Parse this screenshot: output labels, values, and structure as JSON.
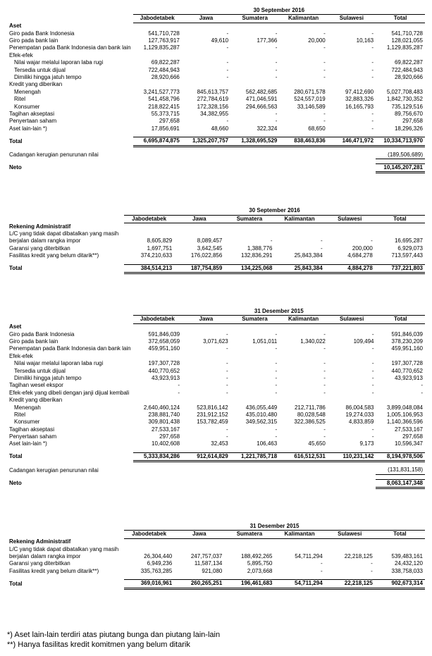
{
  "tables": [
    {
      "date": "30 September 2016",
      "columns": [
        "Jabodetabek",
        "Jawa",
        "Sumatera",
        "Kalimantan",
        "Sulawesi",
        "Total"
      ],
      "section_title": "Aset",
      "rows": [
        {
          "label": "Giro pada Bank Indonesia",
          "indent": 0,
          "vals": [
            "541,710,728",
            "-",
            "-",
            "-",
            "-",
            "541,710,728"
          ]
        },
        {
          "label": "Giro pada bank lain",
          "indent": 0,
          "vals": [
            "127,763,917",
            "49,610",
            "177,366",
            "20,000",
            "10,163",
            "128,021,055"
          ]
        },
        {
          "label": "Penempatan pada Bank Indonesia dan bank lain",
          "indent": 0,
          "vals": [
            "1,129,835,287",
            "-",
            "-",
            "-",
            "-",
            "1,129,835,287"
          ]
        },
        {
          "label": "Efek-efek",
          "indent": 0,
          "vals": [
            "",
            "",
            "",
            "",
            "",
            ""
          ]
        },
        {
          "label": "Nilai wajar melalui laporan laba rugi",
          "indent": 1,
          "vals": [
            "69,822,287",
            "-",
            "-",
            "-",
            "-",
            "69,822,287"
          ]
        },
        {
          "label": "Tersedia untuk dijual",
          "indent": 1,
          "vals": [
            "722,484,943",
            "-",
            "-",
            "-",
            "-",
            "722,484,943"
          ]
        },
        {
          "label": "Dimiliki hingga jatuh tempo",
          "indent": 1,
          "vals": [
            "28,920,666",
            "-",
            "-",
            "-",
            "-",
            "28,920,666"
          ]
        },
        {
          "label": "Kredit yang diberikan",
          "indent": 0,
          "vals": [
            "",
            "",
            "",
            "",
            "",
            ""
          ]
        },
        {
          "label": "Menengah",
          "indent": 1,
          "vals": [
            "3,241,527,773",
            "845,613,757",
            "562,482,685",
            "280,671,578",
            "97,412,690",
            "5,027,708,483"
          ]
        },
        {
          "label": "Ritel",
          "indent": 1,
          "vals": [
            "541,458,796",
            "272,784,619",
            "471,046,591",
            "524,557,019",
            "32,883,326",
            "1,842,730,352"
          ]
        },
        {
          "label": "Konsumer",
          "indent": 1,
          "vals": [
            "218,822,415",
            "172,328,156",
            "294,666,563",
            "33,146,589",
            "16,165,793",
            "735,129,516"
          ]
        },
        {
          "label": "Tagihan akseptasi",
          "indent": 0,
          "vals": [
            "55,373,715",
            "34,382,955",
            "-",
            "-",
            "-",
            "89,756,670"
          ]
        },
        {
          "label": "Penyertaan saham",
          "indent": 0,
          "vals": [
            "297,658",
            "-",
            "-",
            "-",
            "-",
            "297,658"
          ]
        },
        {
          "label": "Aset lain-lain *)",
          "indent": 0,
          "vals": [
            "17,856,691",
            "48,660",
            "322,324",
            "68,650",
            "-",
            "18,296,326"
          ]
        }
      ],
      "total_label": "Total",
      "totals": [
        "6,695,874,875",
        "1,325,207,757",
        "1,328,695,529",
        "838,463,836",
        "146,471,972",
        "10,334,713,970"
      ],
      "cadangan_label": "Cadangan kerugian penurunan nilai",
      "cadangan_val": "(189,506,689)",
      "neto_label": "Neto",
      "neto_val": "10,145,207,281"
    },
    {
      "date": "30 September 2016",
      "columns": [
        "Jabodetabek",
        "Jawa",
        "Sumatera",
        "Kalimantan",
        "Sulawesi",
        "Total"
      ],
      "section_title": "Rekening Administratif",
      "rows": [
        {
          "label": "L/C yang tidak dapat dibatalkan yang masih",
          "indent": 0,
          "vals": [
            "",
            "",
            "",
            "",
            "",
            ""
          ]
        },
        {
          "label": "berjalan dalam rangka impor",
          "indent": 0,
          "vals": [
            "8,605,829",
            "8,089,457",
            "-",
            "-",
            "-",
            "16,695,287"
          ]
        },
        {
          "label": "Garansi yang diterbitkan",
          "indent": 0,
          "vals": [
            "1,697,751",
            "3,642,545",
            "1,388,776",
            "-",
            "200,000",
            "6,929,073"
          ]
        },
        {
          "label": "Fasilitas kredit yang belum ditarik**)",
          "indent": 0,
          "vals": [
            "374,210,633",
            "176,022,856",
            "132,836,291",
            "25,843,384",
            "4,684,278",
            "713,597,443"
          ]
        }
      ],
      "total_label": "Total",
      "totals": [
        "384,514,213",
        "187,754,859",
        "134,225,068",
        "25,843,384",
        "4,884,278",
        "737,221,803"
      ]
    },
    {
      "date": "31 Desember 2015",
      "columns": [
        "Jabodetabek",
        "Jawa",
        "Sumatera",
        "Kalimantan",
        "Sulawesi",
        "Total"
      ],
      "section_title": "Aset",
      "rows": [
        {
          "label": "Giro pada Bank Indonesia",
          "indent": 0,
          "vals": [
            "591,846,039",
            "-",
            "-",
            "-",
            "-",
            "591,846,039"
          ]
        },
        {
          "label": "Giro pada bank lain",
          "indent": 0,
          "vals": [
            "372,658,059",
            "3,071,623",
            "1,051,011",
            "1,340,022",
            "109,494",
            "378,230,209"
          ]
        },
        {
          "label": "Penempatan pada Bank Indonesia dan bank lain",
          "indent": 0,
          "vals": [
            "459,951,160",
            "-",
            "-",
            "-",
            "-",
            "459,951,160"
          ]
        },
        {
          "label": "Efek-efek",
          "indent": 0,
          "vals": [
            "",
            "",
            "",
            "",
            "",
            ""
          ]
        },
        {
          "label": "Nilai wajar melalui laporan laba rugi",
          "indent": 1,
          "vals": [
            "197,307,728",
            "-",
            "-",
            "-",
            "-",
            "197,307,728"
          ]
        },
        {
          "label": "Tersedia untuk dijual",
          "indent": 1,
          "vals": [
            "440,770,652",
            "-",
            "-",
            "-",
            "-",
            "440,770,652"
          ]
        },
        {
          "label": "Dimiliki hingga jatuh tempo",
          "indent": 1,
          "vals": [
            "43,923,913",
            "-",
            "-",
            "-",
            "-",
            "43,923,913"
          ]
        },
        {
          "label": "Tagihan wesel ekspor",
          "indent": 0,
          "vals": [
            "-",
            "-",
            "-",
            "-",
            "-",
            "-"
          ]
        },
        {
          "label": "Efek-efek yang dibeli dengan janji  dijual kembali",
          "indent": 0,
          "vals": [
            "-",
            "-",
            "-",
            "-",
            "-",
            "-"
          ]
        },
        {
          "label": "Kredit yang diberikan",
          "indent": 0,
          "vals": [
            "",
            "",
            "",
            "",
            "",
            ""
          ]
        },
        {
          "label": "Menengah",
          "indent": 1,
          "vals": [
            "2,640,460,124",
            "523,816,142",
            "436,055,449",
            "212,711,786",
            "86,004,583",
            "3,899,048,084"
          ]
        },
        {
          "label": "Ritel",
          "indent": 1,
          "vals": [
            "238,881,740",
            "231,912,152",
            "435,010,480",
            "80,028,548",
            "19,274,033",
            "1,005,106,953"
          ]
        },
        {
          "label": "Konsumer",
          "indent": 1,
          "vals": [
            "309,801,438",
            "153,782,459",
            "349,562,315",
            "322,386,525",
            "4,833,859",
            "1,140,366,596"
          ]
        },
        {
          "label": "Tagihan akseptasi",
          "indent": 0,
          "vals": [
            "27,533,167",
            "-",
            "-",
            "-",
            "-",
            "27,533,167"
          ]
        },
        {
          "label": "Penyertaan saham",
          "indent": 0,
          "vals": [
            "297,658",
            "-",
            "-",
            "-",
            "-",
            "297,658"
          ]
        },
        {
          "label": "Aset lain-lain *)",
          "indent": 0,
          "vals": [
            "10,402,608",
            "32,453",
            "106,463",
            "45,650",
            "9,173",
            "10,596,347"
          ]
        }
      ],
      "total_label": "Total",
      "totals": [
        "5,333,834,286",
        "912,614,829",
        "1,221,785,718",
        "616,512,531",
        "110,231,142",
        "8,194,978,506"
      ],
      "cadangan_label": "Cadangan kerugian penurunan nilai",
      "cadangan_val": "(131,831,158)",
      "neto_label": "Neto",
      "neto_val": "8,063,147,348"
    },
    {
      "date": "31 Desember 2015",
      "columns": [
        "Jabodetabek",
        "Jawa",
        "Sumatera",
        "Kalimantan",
        "Sulawesi",
        "Total"
      ],
      "section_title": "Rekening Administratif",
      "rows": [
        {
          "label": "L/C yang tidak dapat dibatalkan yang masih",
          "indent": 0,
          "vals": [
            "",
            "",
            "",
            "",
            "",
            ""
          ]
        },
        {
          "label": "berjalan dalam rangka impor",
          "indent": 0,
          "vals": [
            "26,304,440",
            "247,757,037",
            "188,492,265",
            "54,711,294",
            "22,218,125",
            "539,483,161"
          ]
        },
        {
          "label": "Garansi yang diterbitkan",
          "indent": 0,
          "vals": [
            "6,949,236",
            "11,587,134",
            "5,895,750",
            "-",
            "-",
            "24,432,120"
          ]
        },
        {
          "label": "Fasilitas kredit yang belum ditarik**)",
          "indent": 0,
          "vals": [
            "335,763,285",
            "921,080",
            "2,073,668",
            "-",
            "-",
            "338,758,033"
          ]
        }
      ],
      "total_label": "Total",
      "totals": [
        "369,016,961",
        "260,265,251",
        "196,461,683",
        "54,711,294",
        "22,218,125",
        "902,673,314"
      ]
    }
  ],
  "footnotes": [
    "*) Aset lain-lain terdiri atas piutang bunga dan piutang lain-lain",
    "**) Hanya fasilitas kredit komitmen yang belum ditarik"
  ],
  "col_widths": [
    "28%",
    "12%",
    "12%",
    "12%",
    "12%",
    "12%",
    "12%"
  ]
}
